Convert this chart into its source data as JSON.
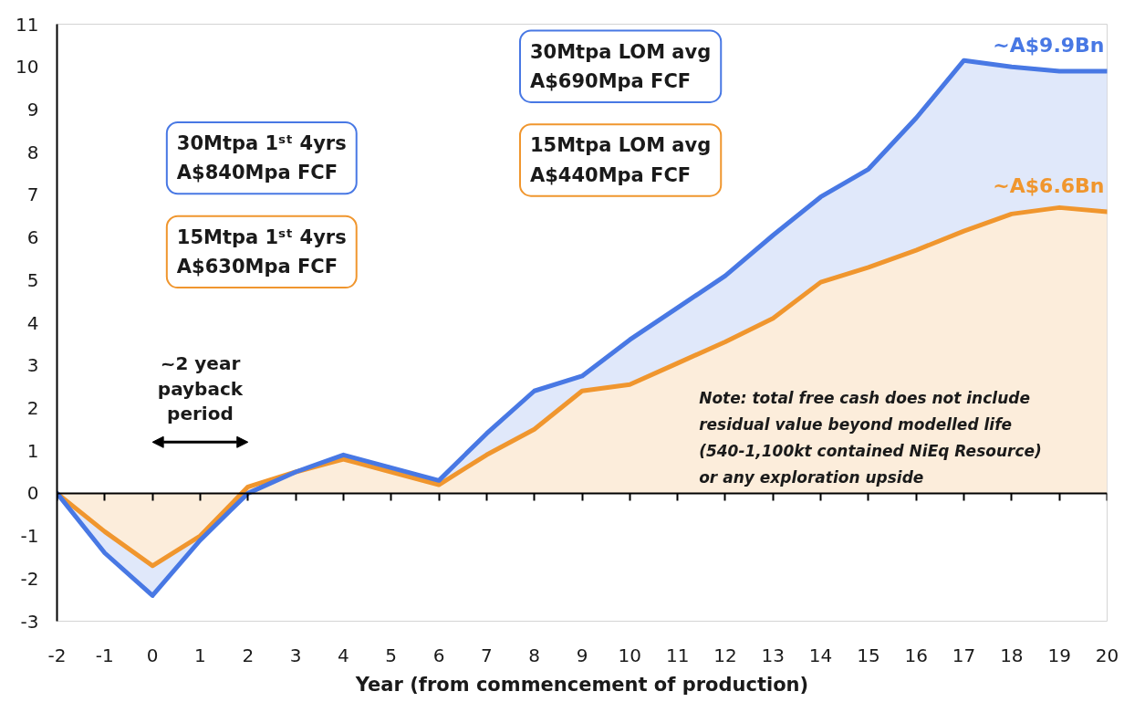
{
  "chart_data": {
    "type": "area",
    "xlabel": "Year (from commencement of production)",
    "x": [
      -2,
      -1,
      0,
      1,
      2,
      3,
      4,
      5,
      6,
      7,
      8,
      9,
      10,
      11,
      12,
      13,
      14,
      15,
      16,
      17,
      18,
      19,
      20
    ],
    "xlim": [
      -2,
      20
    ],
    "xticks": [
      -2,
      -1,
      0,
      1,
      2,
      3,
      4,
      5,
      6,
      7,
      8,
      9,
      10,
      11,
      12,
      13,
      14,
      15,
      16,
      17,
      18,
      19,
      20
    ],
    "ylim": [
      -3,
      11
    ],
    "yticks": [
      -3,
      -2,
      -1,
      0,
      1,
      2,
      3,
      4,
      5,
      6,
      7,
      8,
      9,
      10,
      11
    ],
    "series": [
      {
        "color": "#4878e4",
        "values": [
          0,
          -1.4,
          -2.4,
          -1.1,
          0,
          0.5,
          0.9,
          0.6,
          0.3,
          1.4,
          2.4,
          2.75,
          3.6,
          4.35,
          5.1,
          6.05,
          6.95,
          7.6,
          8.8,
          10.15,
          10,
          9.9,
          9.9
        ]
      },
      {
        "color": "#f0962e",
        "values": [
          0,
          -0.9,
          -1.7,
          -1.0,
          0.15,
          0.5,
          0.8,
          0.5,
          0.2,
          0.9,
          1.5,
          2.4,
          2.55,
          3.05,
          3.55,
          4.1,
          4.95,
          5.3,
          5.7,
          6.15,
          6.55,
          6.7,
          6.6
        ]
      }
    ],
    "annotations": [
      "30Mtpa 1ˢᵗ 4yrs\nA$840Mpa FCF",
      "15Mtpa 1ˢᵗ 4yrs\nA$630Mpa FCF",
      "30Mtpa LOM avg\nA$690Mpa FCF",
      "15Mtpa LOM avg\nA$440Mpa FCF",
      {
        "text": "~A$9.9Bn",
        "x": 20,
        "y": 9.9
      },
      {
        "text": "~A$6.6Bn",
        "x": 20,
        "y": 6.6
      },
      "~2 year\npayback\nperiod",
      "Note: total free cash does not include\nresidual value beyond modelled life\n(540-1,100kt contained NiEq Resource)\nor any exploration upside"
    ]
  }
}
